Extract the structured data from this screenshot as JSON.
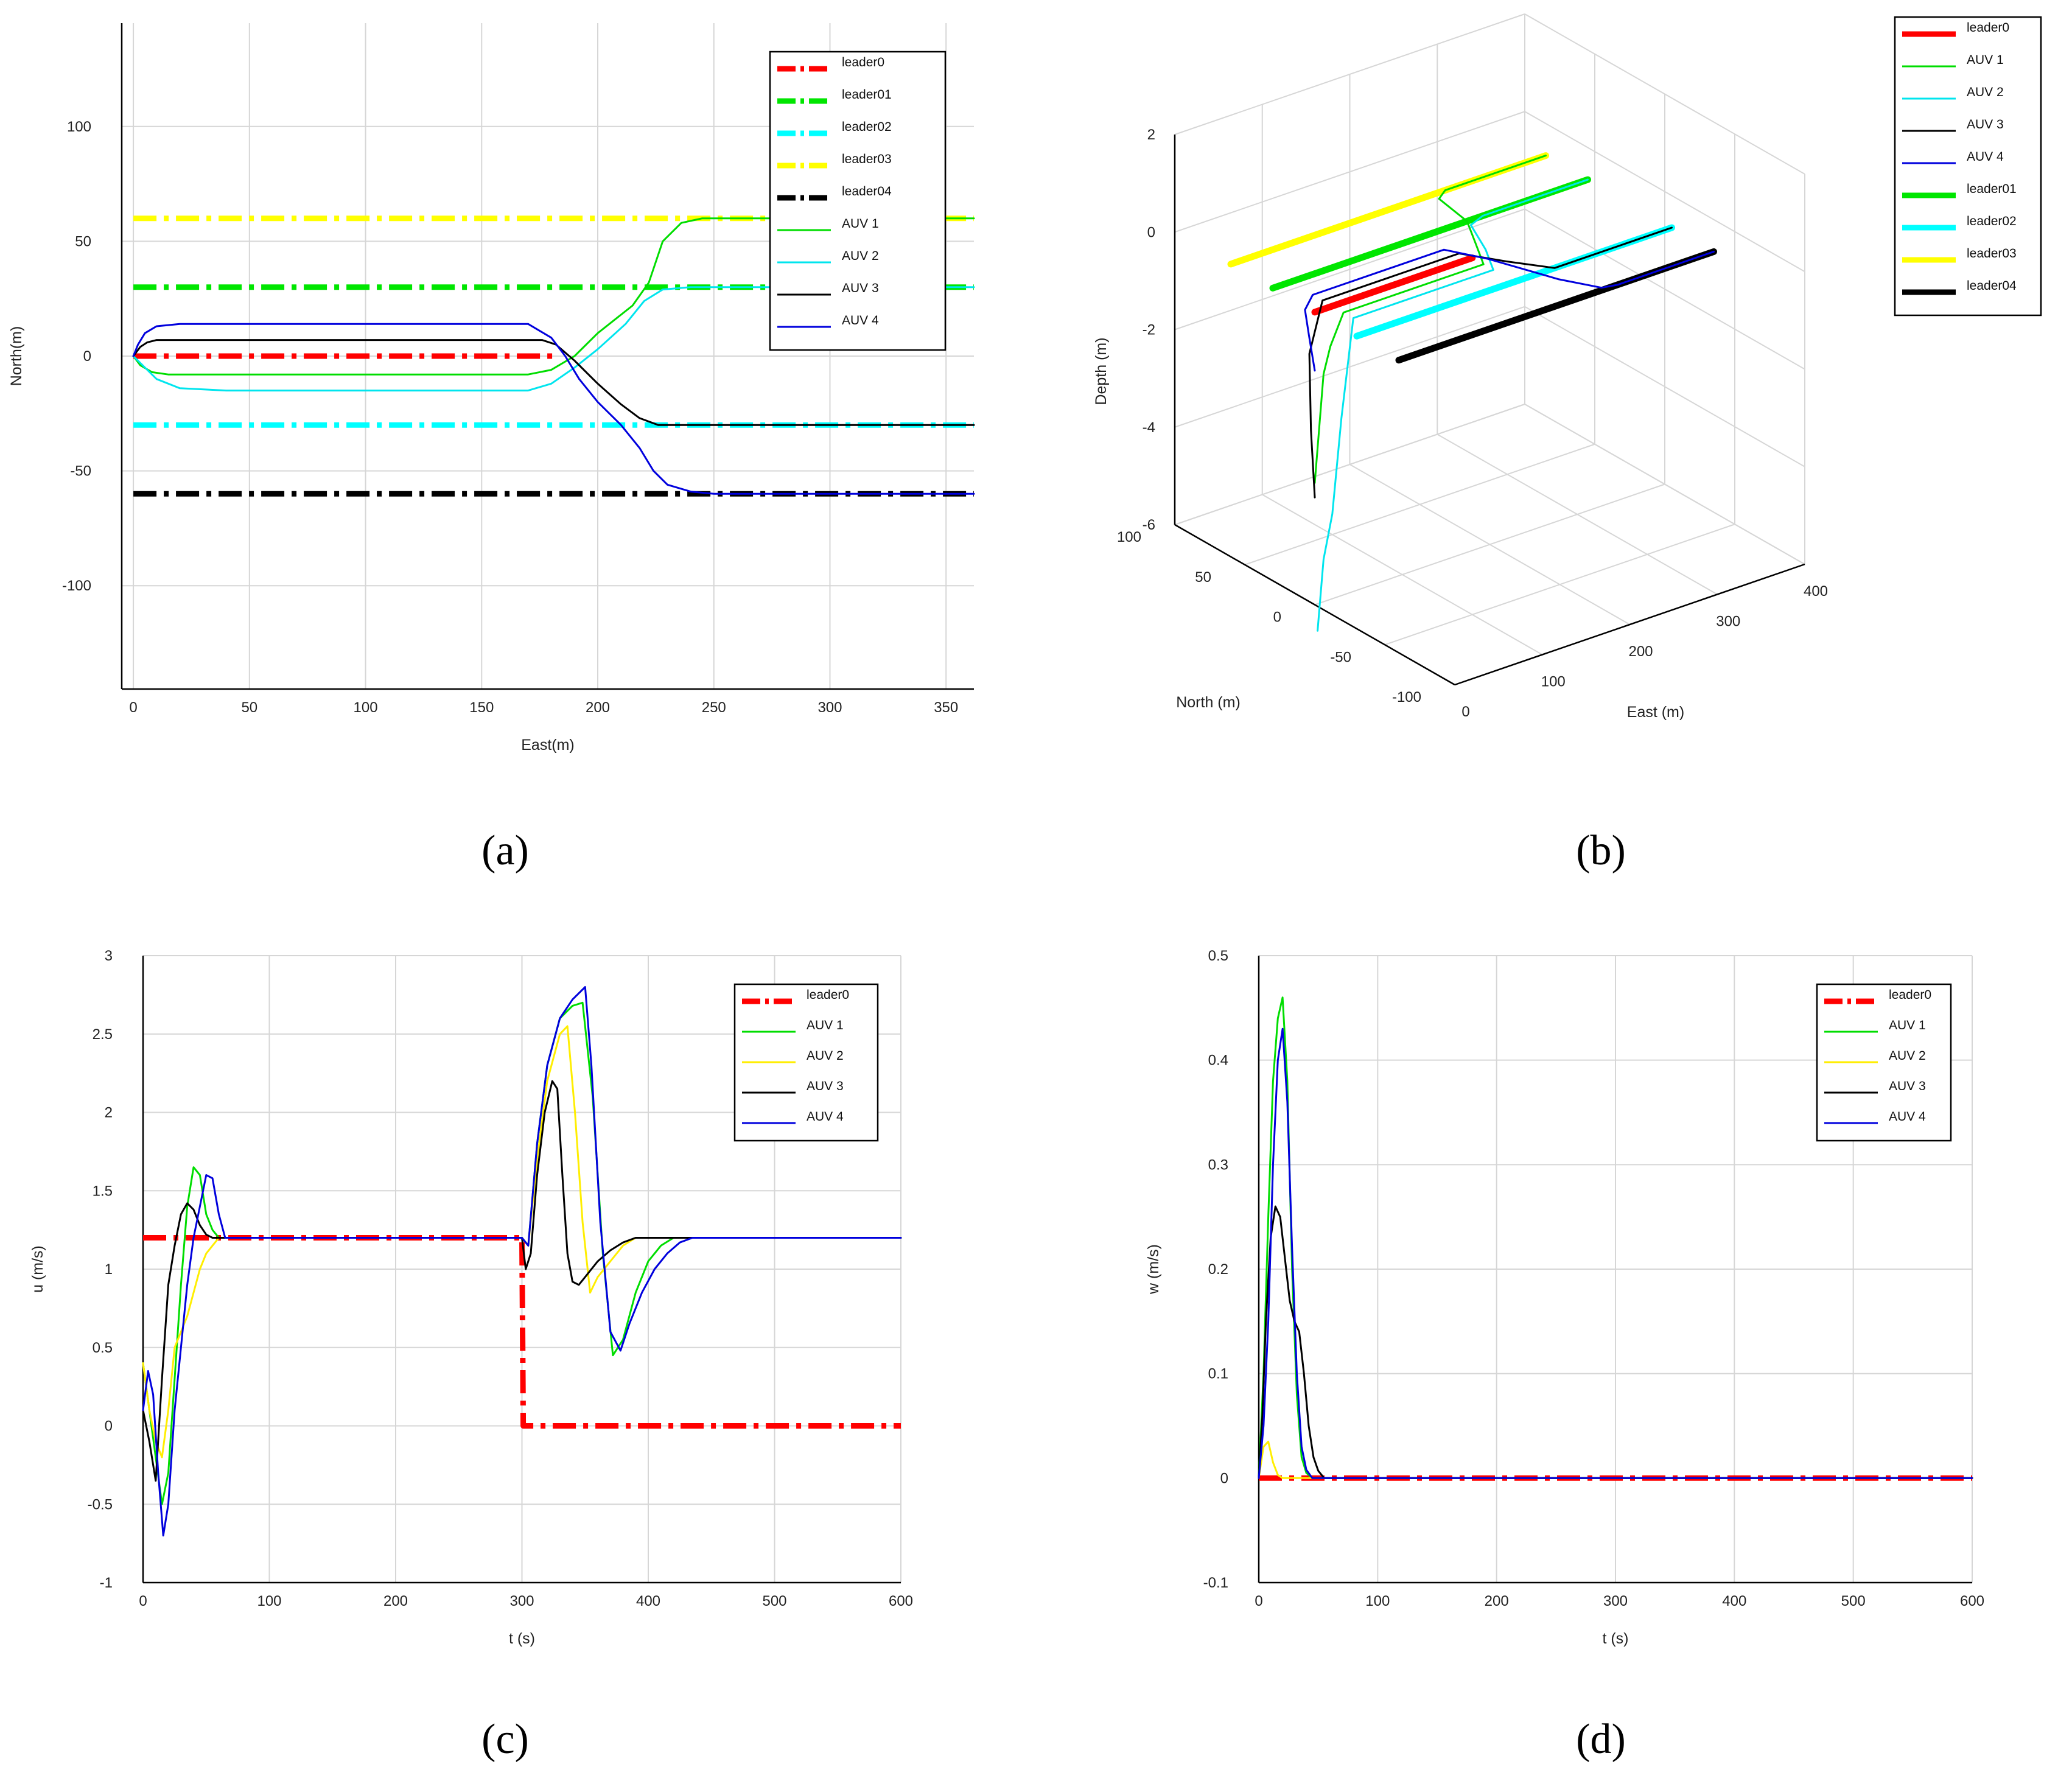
{
  "figure": {
    "captions": [
      "(a)",
      "(b)",
      "(c)",
      "(d)"
    ],
    "colors": {
      "leader0": "#ff0000",
      "leader01": "#00e600",
      "leader02": "#00ffff",
      "leader03": "#ffff00",
      "leader04": "#000000",
      "auv1": "#00dd00",
      "auv2_cyan": "#00e5ee",
      "auv2_yellow": "#ffee00",
      "auv3": "#000000",
      "auv4": "#0000dd"
    }
  },
  "chart_data": [
    {
      "id": "a",
      "type": "line",
      "title": "",
      "xlabel": "East(m)",
      "ylabel": "North(m)",
      "xlim": [
        -5,
        362
      ],
      "ylim": [
        -145,
        145
      ],
      "xticks": [
        0,
        50,
        100,
        150,
        200,
        250,
        300,
        350
      ],
      "yticks": [
        -100,
        -50,
        0,
        50,
        100
      ],
      "grid": true,
      "legend": [
        "leader0",
        "leader01",
        "leader02",
        "leader03",
        "leader04",
        "AUV 1",
        "AUV 2",
        "AUV 3",
        "AUV 4"
      ],
      "legend_position": "top-right",
      "series": [
        {
          "name": "leader0",
          "style": "dashdot-thick",
          "color": "#ff0000",
          "x": [
            0,
            183
          ],
          "y": [
            0,
            0
          ]
        },
        {
          "name": "leader01",
          "style": "dashdot-thick",
          "color": "#00e600",
          "x": [
            0,
            362
          ],
          "y": [
            30,
            30
          ]
        },
        {
          "name": "leader02",
          "style": "dashdot-thick",
          "color": "#00ffff",
          "x": [
            0,
            362
          ],
          "y": [
            -30,
            -30
          ]
        },
        {
          "name": "leader03",
          "style": "dashdot-thick",
          "color": "#ffff00",
          "x": [
            0,
            362
          ],
          "y": [
            60,
            60
          ]
        },
        {
          "name": "leader04",
          "style": "dashdot-thick",
          "color": "#000000",
          "x": [
            0,
            362
          ],
          "y": [
            -60,
            -60
          ]
        },
        {
          "name": "AUV 1",
          "style": "solid",
          "color": "#00dd00",
          "x": [
            0,
            3,
            8,
            15,
            40,
            100,
            170,
            180,
            190,
            200,
            215,
            222,
            228,
            236,
            245,
            362
          ],
          "y": [
            0,
            -4,
            -7,
            -8,
            -8,
            -8,
            -8,
            -6,
            0,
            10,
            22,
            32,
            50,
            58,
            60,
            60
          ]
        },
        {
          "name": "AUV 2",
          "style": "solid",
          "color": "#00e5ee",
          "x": [
            0,
            4,
            10,
            20,
            40,
            100,
            170,
            180,
            190,
            200,
            212,
            220,
            228,
            240,
            362
          ],
          "y": [
            0,
            -4,
            -10,
            -14,
            -15,
            -15,
            -15,
            -12,
            -5,
            3,
            14,
            24,
            29,
            30,
            30
          ]
        },
        {
          "name": "AUV 3",
          "style": "solid",
          "color": "#000000",
          "x": [
            0,
            3,
            6,
            10,
            20,
            60,
            120,
            176,
            182,
            190,
            200,
            210,
            218,
            226,
            240,
            362
          ],
          "y": [
            0,
            4,
            6,
            7,
            7,
            7,
            7,
            7,
            5,
            -2,
            -12,
            -21,
            -27,
            -30,
            -30,
            -30
          ]
        },
        {
          "name": "AUV 4",
          "style": "solid",
          "color": "#0000dd",
          "x": [
            0,
            2,
            5,
            10,
            20,
            60,
            120,
            170,
            180,
            186,
            192,
            200,
            210,
            218,
            224,
            230,
            240,
            250,
            362
          ],
          "y": [
            0,
            5,
            10,
            13,
            14,
            14,
            14,
            14,
            8,
            0,
            -10,
            -20,
            -30,
            -40,
            -50,
            -56,
            -59,
            -60,
            -60
          ]
        }
      ]
    },
    {
      "id": "b",
      "type": "line",
      "projection": "3d",
      "title": "",
      "xlabel": "East (m)",
      "ylabel": "North (m)",
      "zlabel": "Depth (m)",
      "xlim": [
        0,
        400
      ],
      "ylim": [
        -100,
        100
      ],
      "zlim": [
        -6,
        2
      ],
      "xticks": [
        0,
        100,
        200,
        300,
        400
      ],
      "yticks": [
        -100,
        -50,
        0,
        50,
        100
      ],
      "zticks": [
        -6,
        -4,
        -2,
        0,
        2
      ],
      "grid": true,
      "legend": [
        "leader0",
        "AUV 1",
        "AUV 2",
        "AUV 3",
        "AUV 4",
        "leader01",
        "leader02",
        "leader03",
        "leader04"
      ],
      "legend_position": "top-right",
      "series": [
        {
          "name": "leader0",
          "color": "#ff0000",
          "style": "solid-thick",
          "x": [
            0,
            180
          ],
          "y": [
            0,
            0
          ],
          "z": [
            0,
            0
          ]
        },
        {
          "name": "leader01",
          "color": "#00e600",
          "style": "solid-thick",
          "x": [
            0,
            360
          ],
          "y": [
            30,
            30
          ],
          "z": [
            0,
            0
          ]
        },
        {
          "name": "leader02",
          "color": "#00ffff",
          "style": "solid-thick",
          "x": [
            0,
            360
          ],
          "y": [
            -30,
            -30
          ],
          "z": [
            0,
            0
          ]
        },
        {
          "name": "leader03",
          "color": "#ffff00",
          "style": "solid-thick",
          "x": [
            0,
            360
          ],
          "y": [
            60,
            60
          ],
          "z": [
            0,
            0
          ]
        },
        {
          "name": "leader04",
          "color": "#000000",
          "style": "solid-thick",
          "x": [
            0,
            360
          ],
          "y": [
            -60,
            -60
          ],
          "z": [
            0,
            0
          ]
        },
        {
          "name": "AUV 1",
          "color": "#00dd00",
          "style": "solid",
          "x": [
            0,
            2,
            5,
            20,
            180,
            200,
            222,
            230,
            245,
            360
          ],
          "y": [
            0,
            -5,
            -8,
            -8,
            -8,
            10,
            30,
            55,
            60,
            60
          ],
          "z": [
            -3.5,
            -1.2,
            -0.6,
            0,
            0,
            0,
            0,
            0,
            0,
            0
          ]
        },
        {
          "name": "AUV 2",
          "color": "#00e5ee",
          "style": "solid",
          "x": [
            0,
            2,
            4,
            8,
            20,
            180,
            200,
            220,
            240,
            360
          ],
          "y": [
            -2,
            -5,
            -10,
            -14,
            -15,
            -15,
            3,
            26,
            30,
            30
          ],
          "z": [
            -6.5,
            -5,
            -4,
            -2,
            0,
            0,
            0,
            0,
            0,
            0
          ]
        },
        {
          "name": "AUV 3",
          "color": "#000000",
          "style": "solid",
          "x": [
            0,
            2,
            5,
            20,
            176,
            200,
            226,
            240,
            360
          ],
          "y": [
            0,
            4,
            7,
            7,
            7,
            -12,
            -30,
            -30,
            -30
          ],
          "z": [
            -3.8,
            -2.5,
            -1,
            0,
            0,
            0,
            0,
            0,
            0
          ]
        },
        {
          "name": "AUV 4",
          "color": "#0000dd",
          "style": "solid",
          "x": [
            0,
            3,
            8,
            20,
            170,
            190,
            215,
            235,
            250,
            360
          ],
          "y": [
            0,
            6,
            12,
            14,
            14,
            -5,
            -40,
            -58,
            -60,
            -60
          ],
          "z": [
            -1.2,
            -0.6,
            -0.2,
            0,
            0,
            0,
            0,
            0,
            0,
            0
          ]
        }
      ]
    },
    {
      "id": "c",
      "type": "line",
      "title": "",
      "xlabel": "t (s)",
      "ylabel": "u (m/s)",
      "xlim": [
        0,
        600
      ],
      "ylim": [
        -1,
        3
      ],
      "xticks": [
        0,
        100,
        200,
        300,
        400,
        500,
        600
      ],
      "yticks": [
        -1,
        -0.5,
        0,
        0.5,
        1,
        1.5,
        2,
        2.5,
        3
      ],
      "grid": true,
      "legend": [
        "leader0",
        "AUV 1",
        "AUV 2",
        "AUV 3",
        "AUV 4"
      ],
      "legend_position": "top-right",
      "series": [
        {
          "name": "leader0",
          "style": "dashdot-thick",
          "color": "#ff0000",
          "x": [
            0,
            300,
            301,
            600
          ],
          "y": [
            1.2,
            1.2,
            0,
            0
          ]
        },
        {
          "name": "AUV 1",
          "style": "solid",
          "color": "#00dd00",
          "x": [
            0,
            5,
            10,
            15,
            20,
            25,
            30,
            35,
            40,
            45,
            50,
            55,
            60,
            65,
            70,
            80,
            300,
            305,
            312,
            320,
            330,
            340,
            348,
            356,
            364,
            372,
            380,
            390,
            400,
            410,
            420,
            430,
            600
          ],
          "y": [
            0.4,
            0.1,
            -0.2,
            -0.5,
            -0.3,
            0.3,
            0.9,
            1.4,
            1.65,
            1.6,
            1.35,
            1.25,
            1.2,
            1.2,
            1.2,
            1.2,
            1.2,
            1.15,
            1.8,
            2.3,
            2.6,
            2.68,
            2.7,
            2.1,
            1.1,
            0.45,
            0.55,
            0.85,
            1.05,
            1.15,
            1.2,
            1.2,
            1.2
          ]
        },
        {
          "name": "AUV 2",
          "style": "solid",
          "color": "#ffee00",
          "x": [
            0,
            5,
            10,
            15,
            20,
            25,
            30,
            35,
            40,
            45,
            50,
            55,
            60,
            65,
            70,
            80,
            300,
            305,
            312,
            320,
            330,
            336,
            342,
            348,
            354,
            360,
            370,
            380,
            390,
            400,
            420,
            600
          ],
          "y": [
            0.4,
            0.1,
            -0.1,
            -0.2,
            0.1,
            0.5,
            0.6,
            0.7,
            0.85,
            1.0,
            1.1,
            1.15,
            1.2,
            1.2,
            1.2,
            1.2,
            1.2,
            1.15,
            1.7,
            2.2,
            2.5,
            2.55,
            2.0,
            1.3,
            0.85,
            0.95,
            1.05,
            1.15,
            1.2,
            1.2,
            1.2,
            1.2
          ]
        },
        {
          "name": "AUV 3",
          "style": "solid",
          "color": "#000000",
          "x": [
            0,
            5,
            10,
            15,
            20,
            25,
            30,
            35,
            40,
            45,
            50,
            55,
            60,
            70,
            80,
            300,
            303,
            307,
            312,
            318,
            324,
            328,
            332,
            336,
            340,
            345,
            350,
            360,
            370,
            380,
            390,
            400,
            600
          ],
          "y": [
            0.1,
            -0.1,
            -0.35,
            0.3,
            0.9,
            1.15,
            1.35,
            1.42,
            1.38,
            1.28,
            1.22,
            1.2,
            1.2,
            1.2,
            1.2,
            1.2,
            1.0,
            1.1,
            1.6,
            2.0,
            2.2,
            2.15,
            1.6,
            1.1,
            0.92,
            0.9,
            0.95,
            1.05,
            1.12,
            1.17,
            1.2,
            1.2,
            1.2
          ]
        },
        {
          "name": "AUV 4",
          "style": "solid",
          "color": "#0000dd",
          "x": [
            0,
            4,
            8,
            12,
            16,
            20,
            25,
            30,
            35,
            40,
            45,
            50,
            55,
            60,
            65,
            70,
            80,
            300,
            305,
            312,
            320,
            330,
            340,
            350,
            355,
            362,
            370,
            378,
            385,
            395,
            405,
            415,
            425,
            435,
            600
          ],
          "y": [
            0.1,
            0.35,
            0.2,
            -0.3,
            -0.7,
            -0.5,
            0.1,
            0.5,
            0.9,
            1.2,
            1.4,
            1.6,
            1.58,
            1.35,
            1.2,
            1.2,
            1.2,
            1.2,
            1.15,
            1.8,
            2.3,
            2.6,
            2.72,
            2.8,
            2.3,
            1.3,
            0.6,
            0.48,
            0.65,
            0.85,
            1.0,
            1.1,
            1.17,
            1.2,
            1.2
          ]
        }
      ]
    },
    {
      "id": "d",
      "type": "line",
      "title": "",
      "xlabel": "t (s)",
      "ylabel": "w (m/s)",
      "xlim": [
        0,
        600
      ],
      "ylim": [
        -0.1,
        0.5
      ],
      "xticks": [
        0,
        100,
        200,
        300,
        400,
        500,
        600
      ],
      "yticks": [
        -0.1,
        0,
        0.1,
        0.2,
        0.3,
        0.4,
        0.5
      ],
      "grid": true,
      "legend": [
        "leader0",
        "AUV 1",
        "AUV 2",
        "AUV 3",
        "AUV 4"
      ],
      "legend_position": "top-right",
      "series": [
        {
          "name": "leader0",
          "style": "dashdot-thick",
          "color": "#ff0000",
          "x": [
            0,
            600
          ],
          "y": [
            0,
            0
          ]
        },
        {
          "name": "AUV 1",
          "style": "solid",
          "color": "#00dd00",
          "x": [
            0,
            4,
            8,
            12,
            16,
            20,
            24,
            28,
            32,
            36,
            40,
            45,
            50,
            600
          ],
          "y": [
            0,
            0.1,
            0.25,
            0.38,
            0.44,
            0.46,
            0.38,
            0.2,
            0.08,
            0.02,
            0.005,
            0,
            0,
            0
          ]
        },
        {
          "name": "AUV 2",
          "style": "solid",
          "color": "#ffee00",
          "x": [
            0,
            4,
            8,
            12,
            16,
            20,
            30,
            600
          ],
          "y": [
            0,
            0.03,
            0.035,
            0.015,
            0.003,
            0,
            0,
            0
          ]
        },
        {
          "name": "AUV 3",
          "style": "solid",
          "color": "#000000",
          "x": [
            0,
            3,
            6,
            10,
            14,
            18,
            22,
            26,
            30,
            34,
            38,
            42,
            46,
            50,
            55,
            60,
            600
          ],
          "y": [
            0,
            0.06,
            0.15,
            0.23,
            0.26,
            0.25,
            0.21,
            0.17,
            0.15,
            0.14,
            0.1,
            0.05,
            0.02,
            0.007,
            0,
            0,
            0
          ]
        },
        {
          "name": "AUV 4",
          "style": "solid",
          "color": "#0000dd",
          "x": [
            0,
            4,
            8,
            12,
            16,
            20,
            24,
            28,
            32,
            36,
            40,
            45,
            50,
            600
          ],
          "y": [
            0,
            0.05,
            0.15,
            0.3,
            0.4,
            0.43,
            0.36,
            0.22,
            0.1,
            0.03,
            0.008,
            0,
            0,
            0
          ]
        }
      ]
    }
  ]
}
